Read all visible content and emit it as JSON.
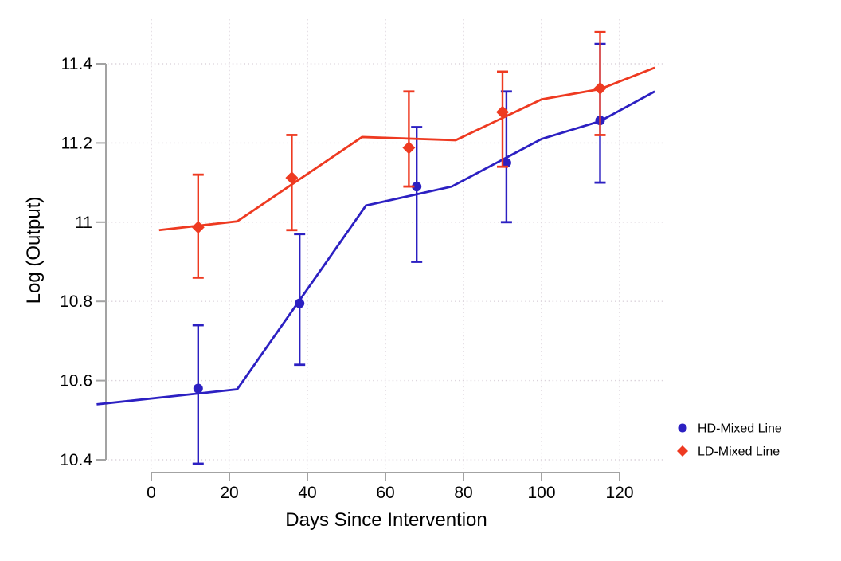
{
  "chart_data": {
    "type": "line",
    "title": "",
    "xlabel": "Days Since Intervention",
    "ylabel": "Log (Output)",
    "xlim": [
      -16,
      132
    ],
    "ylim": [
      10.35,
      11.5
    ],
    "xticks": [
      0,
      20,
      40,
      60,
      80,
      100,
      120
    ],
    "yticks": [
      10.4,
      10.6,
      10.8,
      11,
      11.2,
      11.4
    ],
    "grid": "dotted",
    "grid_color": "#dbd3db",
    "axis_color": "#a3a3a3",
    "legend_position": "right-bottom",
    "series": [
      {
        "name": "HD-Mixed Line",
        "color": "#2c20c2",
        "marker": "circle",
        "line": {
          "x": [
            -14,
            22,
            55,
            77,
            100,
            115,
            129
          ],
          "y": [
            10.54,
            10.578,
            11.042,
            11.09,
            11.21,
            11.255,
            11.33
          ]
        },
        "points": {
          "x": [
            12,
            38,
            68,
            91,
            115
          ],
          "y": [
            10.58,
            10.795,
            11.09,
            11.15,
            11.257
          ],
          "lo": [
            10.39,
            10.64,
            10.9,
            11.0,
            11.1
          ],
          "hi": [
            10.74,
            10.97,
            11.24,
            11.33,
            11.45
          ]
        }
      },
      {
        "name": "LD-Mixed Line",
        "color": "#ee3a21",
        "marker": "diamond",
        "line": {
          "x": [
            2,
            22,
            54,
            78,
            100,
            115,
            129
          ],
          "y": [
            10.98,
            11.002,
            11.215,
            11.207,
            11.31,
            11.336,
            11.39
          ]
        },
        "points": {
          "x": [
            12,
            36,
            66,
            90,
            115
          ],
          "y": [
            10.987,
            11.112,
            11.188,
            11.278,
            11.338
          ],
          "lo": [
            10.86,
            10.98,
            11.09,
            11.14,
            11.22
          ],
          "hi": [
            11.12,
            11.22,
            11.33,
            11.38,
            11.48
          ]
        }
      }
    ]
  },
  "legend": {
    "items": [
      {
        "label": "HD-Mixed Line"
      },
      {
        "label": "LD-Mixed Line"
      }
    ]
  }
}
